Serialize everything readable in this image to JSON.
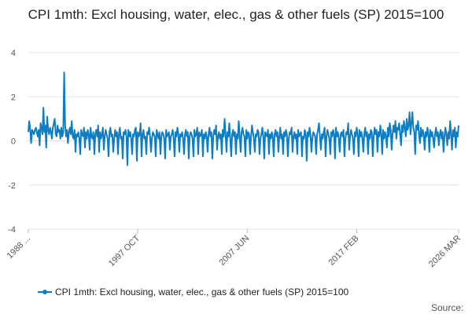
{
  "chart_data": {
    "type": "line",
    "title": "CPI 1mth: Excl housing, water, elec., gas & other fuels (SP) 2015=100",
    "source": "Source:",
    "categories": [
      "1988 ...",
      null,
      null,
      null,
      null,
      null,
      null,
      null,
      null,
      null,
      null,
      null,
      null,
      null,
      null,
      null,
      null,
      null,
      null,
      null,
      null,
      null,
      null,
      null,
      null,
      null,
      null,
      null,
      null,
      null,
      null,
      null,
      null,
      null,
      null,
      null,
      null,
      null,
      null,
      null,
      null,
      null,
      null,
      null,
      null,
      null,
      null,
      null,
      null,
      null,
      null,
      null,
      null,
      null,
      null,
      null,
      null,
      null,
      null,
      null,
      null,
      null,
      null,
      null,
      null,
      null,
      null,
      null,
      null,
      null,
      null,
      null,
      null,
      null,
      null,
      null,
      null,
      null,
      null,
      null,
      null,
      null,
      null,
      null,
      null,
      null,
      null,
      null,
      null,
      null,
      null,
      null,
      null,
      null,
      null,
      null,
      null,
      null,
      null,
      null,
      null,
      null,
      null,
      null,
      null,
      null,
      null,
      null,
      null,
      null,
      null,
      null,
      null,
      null,
      null,
      null,
      "1997 OCT",
      null,
      null,
      null,
      null,
      null,
      null,
      null,
      null,
      null,
      null,
      null,
      null,
      null,
      null,
      null,
      null,
      null,
      null,
      null,
      null,
      null,
      null,
      null,
      null,
      null,
      null,
      null,
      null,
      null,
      null,
      null,
      null,
      null,
      null,
      null,
      null,
      null,
      null,
      null,
      null,
      null,
      null,
      null,
      null,
      null,
      null,
      null,
      null,
      null,
      null,
      null,
      null,
      null,
      null,
      null,
      null,
      null,
      null,
      null,
      null,
      null,
      null,
      null,
      null,
      null,
      null,
      null,
      null,
      null,
      null,
      null,
      null,
      null,
      null,
      null,
      null,
      null,
      null,
      null,
      null,
      null,
      null,
      null,
      null,
      null,
      null,
      null,
      null,
      null,
      null,
      null,
      null,
      null,
      null,
      null,
      null,
      null,
      null,
      null,
      null,
      null,
      null,
      null,
      null,
      null,
      null,
      null,
      null,
      null,
      null,
      null,
      null,
      null,
      null,
      null,
      "2007 JUN",
      null,
      null,
      null,
      null,
      null,
      null,
      null,
      null,
      null,
      null,
      null,
      null,
      null,
      null,
      null,
      null,
      null,
      null,
      null,
      null,
      null,
      null,
      null,
      null,
      null,
      null,
      null,
      null,
      null,
      null,
      null,
      null,
      null,
      null,
      null,
      null,
      null,
      null,
      null,
      null,
      null,
      null,
      null,
      null,
      null,
      null,
      null,
      null,
      null,
      null,
      null,
      null,
      null,
      null,
      null,
      null,
      null,
      null,
      null,
      null,
      null,
      null,
      null,
      null,
      null,
      null,
      null,
      null,
      null,
      null,
      null,
      null,
      null,
      null,
      null,
      null,
      null,
      null,
      null,
      null,
      null,
      null,
      null,
      null,
      null,
      null,
      null,
      null,
      null,
      null,
      null,
      null,
      null,
      null,
      null,
      null,
      null,
      null,
      null,
      null,
      null,
      null,
      null,
      null,
      null,
      null,
      null,
      null,
      null,
      null,
      null,
      null,
      null,
      null,
      null,
      "2017 FEB",
      null,
      null,
      null,
      null,
      null,
      null,
      null,
      null,
      null,
      null,
      null,
      null,
      null,
      null,
      null,
      null,
      null,
      null,
      null,
      null,
      null,
      null,
      null,
      null,
      null,
      null,
      null,
      null,
      null,
      null,
      null,
      null,
      null,
      null,
      null,
      null,
      null,
      null,
      null,
      null,
      null,
      null,
      null,
      null,
      null,
      null,
      null,
      null,
      null,
      null,
      null,
      null,
      null,
      null,
      null,
      null,
      null,
      null,
      null,
      null,
      null,
      null,
      null,
      null,
      null,
      null,
      null,
      null,
      null,
      null,
      null,
      null,
      null,
      null,
      null,
      null,
      null,
      null,
      null,
      null,
      null,
      null,
      null,
      null,
      null,
      null,
      null,
      null,
      null,
      null,
      null,
      null,
      null,
      null,
      null,
      null,
      null,
      null,
      null,
      null,
      null,
      null,
      null,
      null,
      null,
      null,
      null,
      "2026 MAR"
    ],
    "series": [
      {
        "name": "CPI 1mth: Excl housing, water, elec., gas & other fuels (SP) 2015=100",
        "color": "#0f7dc2",
        "values": [
          0.4,
          0.9,
          0.5,
          -0.1,
          0.5,
          0.4,
          0.3,
          0.5,
          0.6,
          0.4,
          0.2,
          0.5,
          -0.2,
          0.8,
          0.6,
          0.3,
          1.5,
          0.4,
          0.7,
          -0.3,
          1.1,
          0.5,
          0.3,
          0.6,
          0.4,
          0.1,
          0.6,
          0.8,
          1.0,
          0.3,
          0.2,
          0.7,
          0.4,
          0.5,
          0.1,
          0.6,
          0.2,
          0.4,
          3.1,
          0.7,
          0.2,
          0.5,
          -0.1,
          0.4,
          0.6,
          0.3,
          0.9,
          0.2,
          0.1,
          0.5,
          -0.5,
          0.3,
          0.2,
          0.4,
          0.1,
          -0.6,
          0.5,
          0.3,
          0.2,
          0.6,
          -0.3,
          0.4,
          0.1,
          0.5,
          0.3,
          -0.4,
          0.6,
          0.2,
          0.1,
          0.4,
          -0.6,
          0.3,
          0.5,
          0.2,
          0.7,
          -0.5,
          0.4,
          0.1,
          0.3,
          0.6,
          -0.4,
          0.2,
          0.5,
          0.3,
          0.1,
          -0.7,
          0.4,
          0.6,
          0.2,
          0.3,
          -0.5,
          0.1,
          0.5,
          0.2,
          0.4,
          -0.6,
          0.3,
          0.6,
          0.1,
          0.2,
          -0.8,
          0.4,
          0.3,
          0.5,
          0.2,
          -1.1,
          0.5,
          0.2,
          0.4,
          0.1,
          -0.6,
          0.3,
          0.2,
          0.5,
          0.6,
          -0.9,
          0.4,
          0.2,
          0.3,
          0.8,
          -0.7,
          0.3,
          0.5,
          0.1,
          0.2,
          -0.6,
          0.4,
          0.3,
          0.6,
          0.2,
          -0.5,
          0.1,
          0.4,
          0.3,
          0.2,
          -0.7,
          0.5,
          0.3,
          0.1,
          0.4,
          -0.6,
          0.2,
          0.4,
          0.3,
          0.1,
          -0.8,
          0.5,
          0.2,
          0.3,
          0.4,
          -0.4,
          0.2,
          0.3,
          0.5,
          0.1,
          -0.7,
          0.4,
          0.2,
          0.6,
          0.3,
          -0.5,
          0.3,
          0.2,
          0.4,
          0.1,
          -0.6,
          0.3,
          0.5,
          0.2,
          0.4,
          -0.8,
          0.2,
          0.4,
          0.3,
          0.1,
          -0.7,
          0.5,
          0.2,
          0.3,
          0.6,
          -0.6,
          0.4,
          0.2,
          0.3,
          0.5,
          -0.7,
          0.3,
          0.1,
          0.4,
          0.2,
          -0.5,
          0.3,
          0.6,
          0.2,
          0.4,
          -0.8,
          0.2,
          0.5,
          0.3,
          0.7,
          -0.4,
          0.2,
          0.4,
          0.1,
          0.3,
          -0.6,
          0.5,
          0.2,
          1.0,
          0.3,
          -0.5,
          0.4,
          0.2,
          0.8,
          0.1,
          -0.7,
          0.3,
          0.5,
          0.2,
          0.4,
          -0.6,
          0.3,
          0.1,
          0.9,
          0.2,
          -0.5,
          0.4,
          0.6,
          0.3,
          0.2,
          -0.7,
          0.5,
          0.1,
          0.4,
          0.3,
          -0.6,
          0.2,
          0.7,
          0.4,
          0.1,
          -0.5,
          0.3,
          0.2,
          0.5,
          0.4,
          -0.6,
          0.1,
          0.3,
          0.6,
          0.2,
          -0.8,
          0.4,
          0.3,
          0.2,
          0.5,
          -0.6,
          0.3,
          0.1,
          0.4,
          0.2,
          -0.7,
          0.3,
          0.5,
          0.2,
          0.4,
          -0.5,
          0.2,
          0.6,
          0.1,
          0.3,
          -0.6,
          0.4,
          0.2,
          0.5,
          0.3,
          -0.7,
          0.1,
          0.4,
          0.3,
          0.6,
          -0.5,
          0.2,
          0.4,
          0.1,
          0.3,
          -0.6,
          0.5,
          0.2,
          0.3,
          0.4,
          -0.7,
          0.2,
          0.1,
          0.5,
          0.3,
          -0.9,
          0.4,
          0.2,
          0.6,
          0.3,
          -0.5,
          0.1,
          0.4,
          0.3,
          0.2,
          -0.6,
          0.3,
          0.5,
          0.8,
          0.2,
          -0.4,
          0.3,
          0.1,
          0.4,
          0.6,
          -0.7,
          0.2,
          0.5,
          0.3,
          0.1,
          -0.6,
          0.4,
          0.2,
          0.5,
          0.3,
          -0.8,
          0.6,
          0.2,
          0.4,
          0.1,
          -0.5,
          0.3,
          0.4,
          0.2,
          0.5,
          -0.7,
          0.1,
          0.4,
          0.3,
          0.8,
          -0.4,
          0.2,
          0.5,
          0.3,
          0.1,
          -0.6,
          0.4,
          0.2,
          0.6,
          0.3,
          -0.7,
          0.5,
          0.2,
          0.4,
          0.1,
          -0.5,
          0.3,
          0.6,
          0.2,
          0.4,
          -0.6,
          0.3,
          0.1,
          0.5,
          0.4,
          -0.7,
          0.2,
          0.6,
          0.3,
          0.5,
          -0.5,
          0.4,
          0.2,
          0.7,
          0.3,
          -0.6,
          0.5,
          0.1,
          0.4,
          0.2,
          -0.3,
          0.6,
          0.2,
          0.8,
          0.5,
          -0.4,
          0.3,
          0.7,
          0.4,
          0.9,
          0.1,
          0.6,
          0.5,
          0.8,
          0.3,
          -0.2,
          0.7,
          0.4,
          0.9,
          0.6,
          0.2,
          1.0,
          0.5,
          0.7,
          1.3,
          0.3,
          0.8,
          1.3,
          0.6,
          0.4,
          -0.6,
          0.7,
          0.5,
          0.9,
          0.3,
          -0.1,
          0.6,
          0.2,
          0.5,
          0.3,
          -0.4,
          0.4,
          0.2,
          0.6,
          0.3,
          -0.5,
          0.5,
          0.2,
          0.4,
          0.1,
          -0.3,
          0.3,
          0.6,
          0.2,
          0.4,
          -0.2,
          0.3,
          0.5,
          0.1,
          0.4,
          -0.5,
          0.2,
          0.6,
          0.3,
          -0.2,
          0.4,
          0.1,
          0.9,
          0.3,
          -0.4,
          0.5,
          0.2,
          0.6,
          -0.3,
          0.4,
          0.2,
          0.7
        ]
      }
    ],
    "ylim": [
      -4,
      4
    ],
    "yticks": [
      -4,
      -2,
      0,
      2,
      4
    ],
    "grid": true
  }
}
